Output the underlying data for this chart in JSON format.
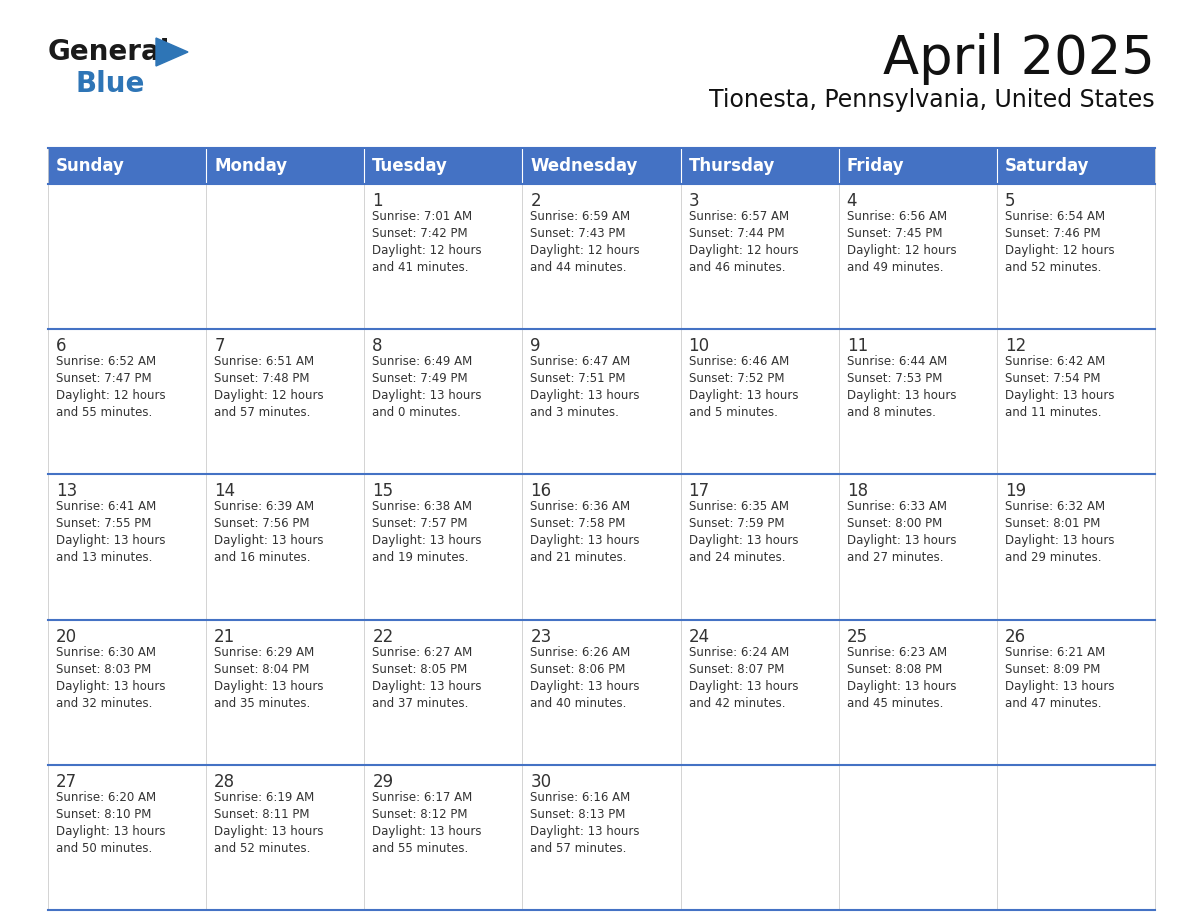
{
  "title": "April 2025",
  "subtitle": "Tionesta, Pennsylvania, United States",
  "header_bg": "#4472C4",
  "header_text_color": "#FFFFFF",
  "border_color": "#4472C4",
  "text_color": "#333333",
  "days_of_week": [
    "Sunday",
    "Monday",
    "Tuesday",
    "Wednesday",
    "Thursday",
    "Friday",
    "Saturday"
  ],
  "calendar_data": [
    [
      {
        "day": "",
        "info": ""
      },
      {
        "day": "",
        "info": ""
      },
      {
        "day": "1",
        "info": "Sunrise: 7:01 AM\nSunset: 7:42 PM\nDaylight: 12 hours\nand 41 minutes."
      },
      {
        "day": "2",
        "info": "Sunrise: 6:59 AM\nSunset: 7:43 PM\nDaylight: 12 hours\nand 44 minutes."
      },
      {
        "day": "3",
        "info": "Sunrise: 6:57 AM\nSunset: 7:44 PM\nDaylight: 12 hours\nand 46 minutes."
      },
      {
        "day": "4",
        "info": "Sunrise: 6:56 AM\nSunset: 7:45 PM\nDaylight: 12 hours\nand 49 minutes."
      },
      {
        "day": "5",
        "info": "Sunrise: 6:54 AM\nSunset: 7:46 PM\nDaylight: 12 hours\nand 52 minutes."
      }
    ],
    [
      {
        "day": "6",
        "info": "Sunrise: 6:52 AM\nSunset: 7:47 PM\nDaylight: 12 hours\nand 55 minutes."
      },
      {
        "day": "7",
        "info": "Sunrise: 6:51 AM\nSunset: 7:48 PM\nDaylight: 12 hours\nand 57 minutes."
      },
      {
        "day": "8",
        "info": "Sunrise: 6:49 AM\nSunset: 7:49 PM\nDaylight: 13 hours\nand 0 minutes."
      },
      {
        "day": "9",
        "info": "Sunrise: 6:47 AM\nSunset: 7:51 PM\nDaylight: 13 hours\nand 3 minutes."
      },
      {
        "day": "10",
        "info": "Sunrise: 6:46 AM\nSunset: 7:52 PM\nDaylight: 13 hours\nand 5 minutes."
      },
      {
        "day": "11",
        "info": "Sunrise: 6:44 AM\nSunset: 7:53 PM\nDaylight: 13 hours\nand 8 minutes."
      },
      {
        "day": "12",
        "info": "Sunrise: 6:42 AM\nSunset: 7:54 PM\nDaylight: 13 hours\nand 11 minutes."
      }
    ],
    [
      {
        "day": "13",
        "info": "Sunrise: 6:41 AM\nSunset: 7:55 PM\nDaylight: 13 hours\nand 13 minutes."
      },
      {
        "day": "14",
        "info": "Sunrise: 6:39 AM\nSunset: 7:56 PM\nDaylight: 13 hours\nand 16 minutes."
      },
      {
        "day": "15",
        "info": "Sunrise: 6:38 AM\nSunset: 7:57 PM\nDaylight: 13 hours\nand 19 minutes."
      },
      {
        "day": "16",
        "info": "Sunrise: 6:36 AM\nSunset: 7:58 PM\nDaylight: 13 hours\nand 21 minutes."
      },
      {
        "day": "17",
        "info": "Sunrise: 6:35 AM\nSunset: 7:59 PM\nDaylight: 13 hours\nand 24 minutes."
      },
      {
        "day": "18",
        "info": "Sunrise: 6:33 AM\nSunset: 8:00 PM\nDaylight: 13 hours\nand 27 minutes."
      },
      {
        "day": "19",
        "info": "Sunrise: 6:32 AM\nSunset: 8:01 PM\nDaylight: 13 hours\nand 29 minutes."
      }
    ],
    [
      {
        "day": "20",
        "info": "Sunrise: 6:30 AM\nSunset: 8:03 PM\nDaylight: 13 hours\nand 32 minutes."
      },
      {
        "day": "21",
        "info": "Sunrise: 6:29 AM\nSunset: 8:04 PM\nDaylight: 13 hours\nand 35 minutes."
      },
      {
        "day": "22",
        "info": "Sunrise: 6:27 AM\nSunset: 8:05 PM\nDaylight: 13 hours\nand 37 minutes."
      },
      {
        "day": "23",
        "info": "Sunrise: 6:26 AM\nSunset: 8:06 PM\nDaylight: 13 hours\nand 40 minutes."
      },
      {
        "day": "24",
        "info": "Sunrise: 6:24 AM\nSunset: 8:07 PM\nDaylight: 13 hours\nand 42 minutes."
      },
      {
        "day": "25",
        "info": "Sunrise: 6:23 AM\nSunset: 8:08 PM\nDaylight: 13 hours\nand 45 minutes."
      },
      {
        "day": "26",
        "info": "Sunrise: 6:21 AM\nSunset: 8:09 PM\nDaylight: 13 hours\nand 47 minutes."
      }
    ],
    [
      {
        "day": "27",
        "info": "Sunrise: 6:20 AM\nSunset: 8:10 PM\nDaylight: 13 hours\nand 50 minutes."
      },
      {
        "day": "28",
        "info": "Sunrise: 6:19 AM\nSunset: 8:11 PM\nDaylight: 13 hours\nand 52 minutes."
      },
      {
        "day": "29",
        "info": "Sunrise: 6:17 AM\nSunset: 8:12 PM\nDaylight: 13 hours\nand 55 minutes."
      },
      {
        "day": "30",
        "info": "Sunrise: 6:16 AM\nSunset: 8:13 PM\nDaylight: 13 hours\nand 57 minutes."
      },
      {
        "day": "",
        "info": ""
      },
      {
        "day": "",
        "info": ""
      },
      {
        "day": "",
        "info": ""
      }
    ]
  ],
  "logo_color_general": "#1a1a1a",
  "logo_color_blue": "#2E75B6",
  "logo_triangle_color": "#2E75B6",
  "title_fontsize": 38,
  "subtitle_fontsize": 17,
  "header_fontsize": 12,
  "day_number_fontsize": 12,
  "info_fontsize": 8.5
}
